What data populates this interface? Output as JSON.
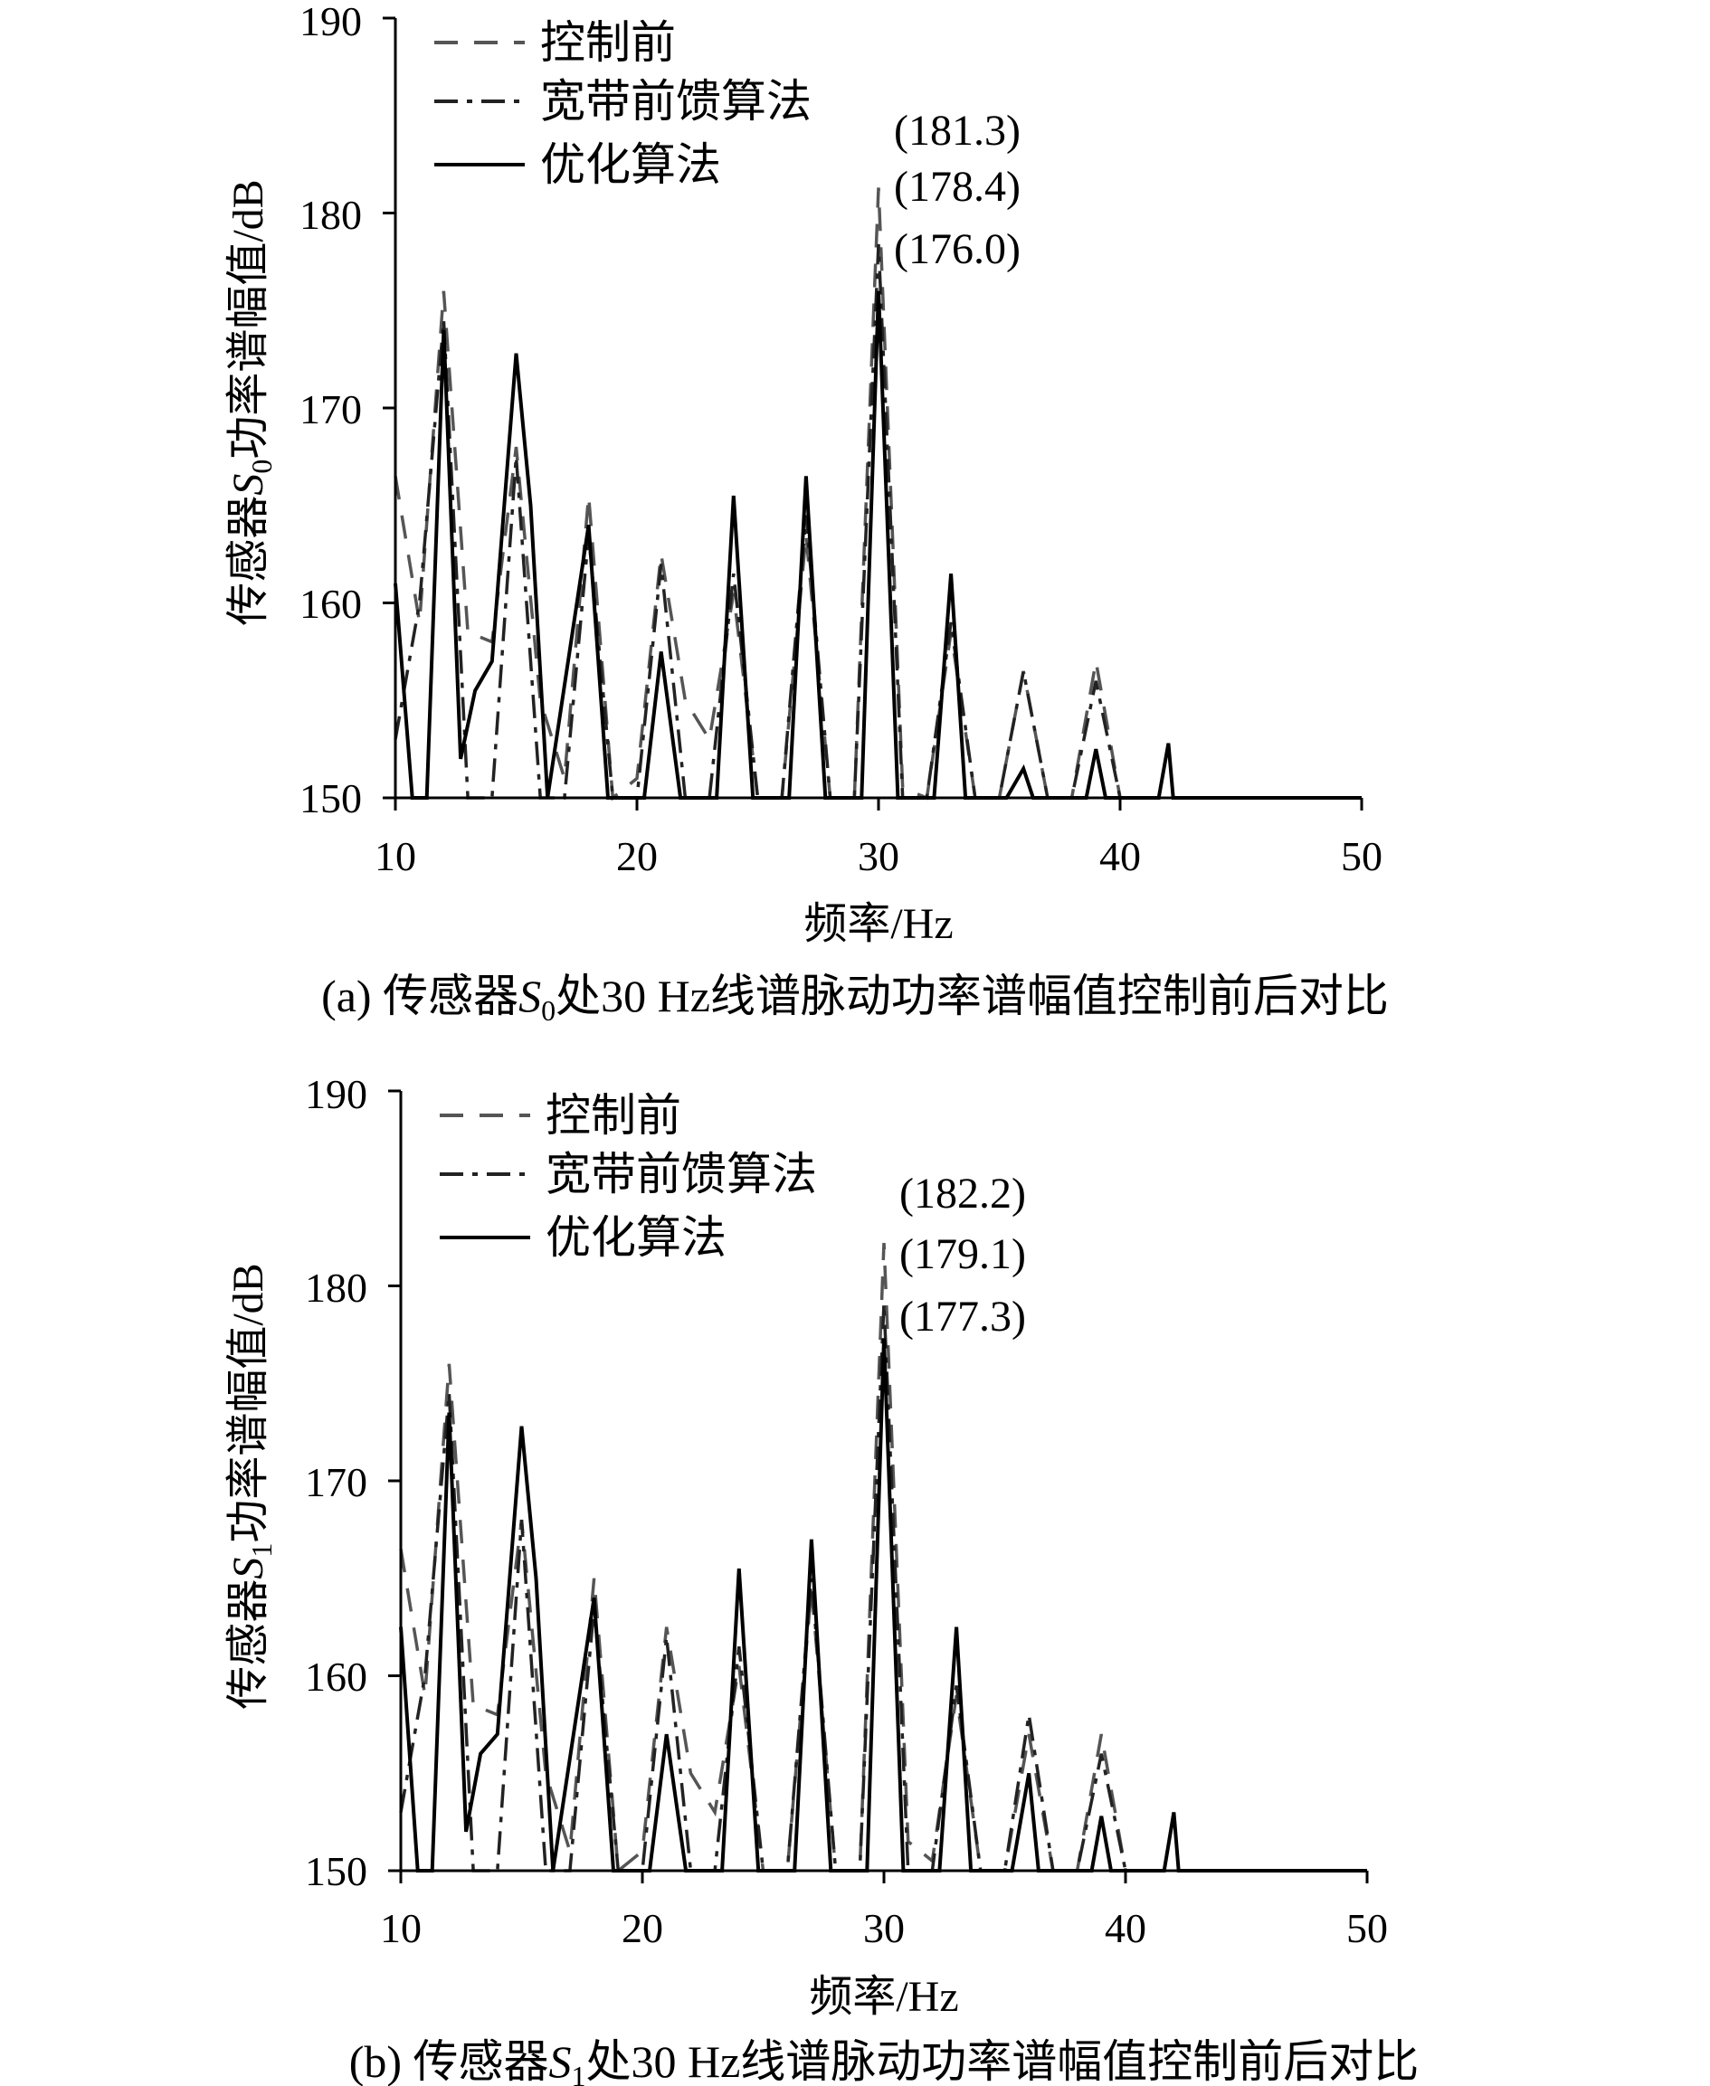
{
  "chart_data": [
    {
      "type": "line",
      "panel": "a",
      "caption_prefix": "(a) 传感器",
      "caption_sensor": "S",
      "caption_sub": "0",
      "caption_suffix": "处30 Hz线谱脉动功率谱幅值控制前后对比",
      "xlabel": "频率/Hz",
      "ylabel_prefix": "传感器",
      "ylabel_sensor": "S",
      "ylabel_sub": "0",
      "ylabel_suffix": "功率谱幅值/dB",
      "xlim": [
        10,
        50
      ],
      "ylim": [
        150,
        190
      ],
      "xticks": [
        "10",
        "20",
        "30",
        "40",
        "50"
      ],
      "yticks": [
        "150",
        "160",
        "170",
        "180",
        "190"
      ],
      "legend": [
        "控制前",
        "宽带前馈算法",
        "优化算法"
      ],
      "annotations": [
        "(181.3)",
        "(178.4)",
        "(176.0)"
      ],
      "series": [
        {
          "name": "控制前",
          "style": "dash",
          "color": "#555555",
          "x": [
            10,
            11,
            12,
            13,
            14,
            15,
            16,
            17,
            18,
            19,
            20,
            21,
            22,
            23,
            24,
            25,
            26,
            27,
            28,
            29,
            30,
            31,
            32,
            33,
            34,
            35,
            36,
            37,
            38,
            39,
            40
          ],
          "y": [
            166.5,
            159.0,
            176.0,
            158.5,
            158.0,
            168.0,
            155.0,
            151.0,
            165.5,
            150.0,
            151.0,
            162.5,
            155.0,
            153.0,
            160.5,
            150.0,
            150.0,
            163.5,
            150.0,
            150.0,
            181.3,
            150.5,
            150.0,
            158.5,
            150.0,
            150.0,
            156.5,
            150.0,
            150.0,
            157.0,
            150.0
          ]
        },
        {
          "name": "宽带前馈算法",
          "style": "dashdot",
          "color": "#222222",
          "x": [
            10,
            11,
            12,
            13,
            14,
            15,
            16,
            17,
            18,
            19,
            20,
            21,
            22,
            23,
            24,
            25,
            26,
            27,
            28,
            29,
            30,
            31,
            32,
            33,
            34,
            35,
            36,
            37,
            38,
            39,
            40
          ],
          "y": [
            153.0,
            160.0,
            174.5,
            150.0,
            150.0,
            167.5,
            150.0,
            150.0,
            163.5,
            150.0,
            150.0,
            162.0,
            150.0,
            150.0,
            161.5,
            150.0,
            150.0,
            164.5,
            150.0,
            150.0,
            178.4,
            150.0,
            150.0,
            159.0,
            150.0,
            150.0,
            156.5,
            150.0,
            150.0,
            156.0,
            150.0
          ]
        },
        {
          "name": "优化算法",
          "style": "solid",
          "color": "#000000",
          "x": [
            10,
            10.7,
            11.3,
            12,
            12.7,
            13.3,
            14,
            15,
            15.6,
            16.3,
            18,
            18.8,
            20.3,
            21,
            21.8,
            23.3,
            24,
            24.8,
            26.3,
            27,
            27.8,
            29.3,
            30,
            30.8,
            32.3,
            33,
            33.6,
            35.3,
            36,
            36.4,
            38.6,
            39,
            39.4,
            41.6,
            42,
            42.2,
            50
          ],
          "y": [
            161.0,
            150.0,
            150.0,
            174.0,
            152.0,
            155.5,
            157.0,
            172.8,
            165.0,
            150.0,
            164.0,
            150.0,
            150.0,
            157.5,
            150.0,
            150.0,
            165.5,
            150.0,
            150.0,
            166.5,
            150.0,
            150.0,
            176.0,
            150.0,
            150.0,
            161.5,
            150.0,
            150.0,
            151.5,
            150.0,
            150.0,
            152.5,
            150.0,
            150.0,
            152.8,
            150.0,
            150.0
          ]
        }
      ]
    },
    {
      "type": "line",
      "panel": "b",
      "caption_prefix": "(b) 传感器",
      "caption_sensor": "S",
      "caption_sub": "1",
      "caption_suffix": "处30 Hz线谱脉动功率谱幅值控制前后对比",
      "xlabel": "频率/Hz",
      "ylabel_prefix": "传感器",
      "ylabel_sensor": "S",
      "ylabel_sub": "1",
      "ylabel_suffix": "功率谱幅值/dB",
      "xlim": [
        10,
        50
      ],
      "ylim": [
        150,
        190
      ],
      "xticks": [
        "10",
        "20",
        "30",
        "40",
        "50"
      ],
      "yticks": [
        "150",
        "160",
        "170",
        "180",
        "190"
      ],
      "legend": [
        "控制前",
        "宽带前馈算法",
        "优化算法"
      ],
      "annotations": [
        "(182.2)",
        "(179.1)",
        "(177.3)"
      ],
      "series": [
        {
          "name": "控制前",
          "style": "dash",
          "color": "#555555",
          "x": [
            10,
            11,
            12,
            13,
            14,
            15,
            16,
            17,
            18,
            19,
            20,
            21,
            22,
            23,
            24,
            25,
            26,
            27,
            28,
            29,
            30,
            31,
            32,
            33,
            34,
            35,
            36,
            37,
            38,
            39,
            40
          ],
          "y": [
            166.5,
            159.0,
            176.0,
            158.5,
            158.0,
            168.0,
            155.0,
            151.0,
            165.0,
            150.0,
            151.0,
            162.5,
            155.0,
            153.0,
            160.5,
            150.0,
            150.0,
            164.5,
            150.0,
            150.0,
            182.2,
            151.5,
            150.5,
            159.0,
            150.0,
            150.0,
            157.0,
            150.0,
            150.0,
            157.0,
            150.0
          ]
        },
        {
          "name": "宽带前馈算法",
          "style": "dashdot",
          "color": "#222222",
          "x": [
            10,
            11,
            12,
            13,
            14,
            15,
            16,
            17,
            18,
            19,
            20,
            21,
            22,
            23,
            24,
            25,
            26,
            27,
            28,
            29,
            30,
            31,
            32,
            33,
            34,
            35,
            36,
            37,
            38,
            39,
            40
          ],
          "y": [
            153.0,
            160.0,
            174.5,
            150.0,
            150.0,
            168.0,
            150.0,
            150.0,
            163.5,
            150.0,
            150.0,
            162.0,
            150.0,
            150.0,
            161.5,
            150.0,
            150.0,
            165.0,
            150.0,
            150.0,
            179.1,
            150.0,
            150.0,
            159.5,
            150.0,
            150.0,
            158.0,
            150.0,
            150.0,
            156.0,
            150.0
          ]
        },
        {
          "name": "优化算法",
          "style": "solid",
          "color": "#000000",
          "x": [
            10,
            10.7,
            11.3,
            12,
            12.7,
            13.3,
            14,
            15,
            15.6,
            16.3,
            18,
            18.8,
            20.3,
            21,
            21.8,
            23.3,
            24,
            24.8,
            26.3,
            27,
            27.8,
            29.3,
            30,
            30.8,
            32.3,
            33,
            33.6,
            35.3,
            36,
            36.4,
            38.6,
            39,
            39.4,
            41.6,
            42,
            42.2,
            50
          ],
          "y": [
            162.5,
            150.0,
            150.0,
            173.5,
            152.0,
            156.0,
            157.0,
            172.8,
            165.0,
            150.0,
            164.0,
            150.0,
            150.0,
            157.0,
            150.0,
            150.0,
            165.5,
            150.0,
            150.0,
            167.0,
            150.0,
            150.0,
            177.3,
            150.0,
            150.0,
            162.5,
            150.0,
            150.0,
            155.0,
            150.0,
            150.0,
            152.8,
            150.0,
            150.0,
            153.0,
            150.0,
            150.0
          ]
        }
      ]
    }
  ]
}
